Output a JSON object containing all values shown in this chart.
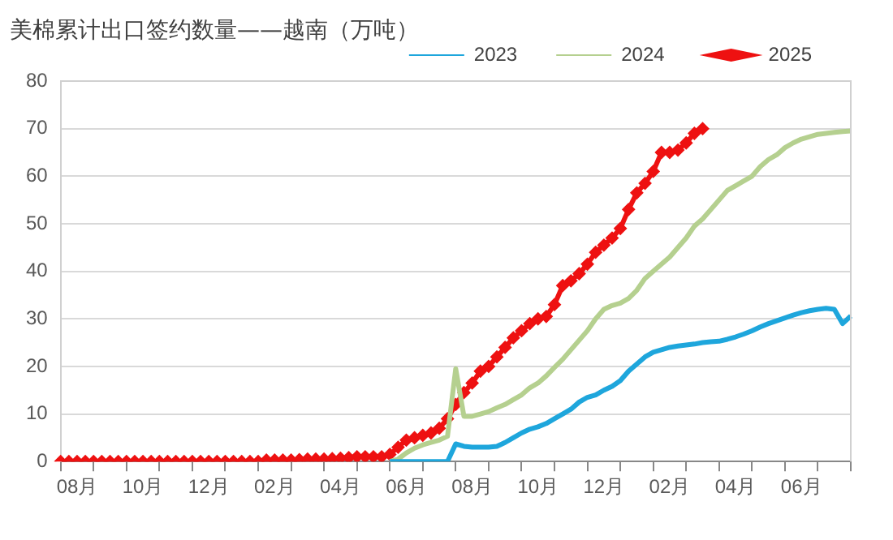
{
  "chart_data": {
    "type": "line",
    "title": "美棉累计出口签约数量——越南（万吨）",
    "categories": [
      null,
      null,
      "08月",
      null,
      null,
      null,
      null,
      null,
      null,
      null,
      "10月",
      null,
      null,
      null,
      null,
      null,
      null,
      null,
      "12月",
      null,
      null,
      null,
      null,
      null,
      null,
      null,
      "02月",
      null,
      null,
      null,
      null,
      null,
      null,
      null,
      "04月",
      null,
      null,
      null,
      null,
      null,
      null,
      null,
      "06月",
      null,
      null,
      null,
      null,
      null,
      null,
      null,
      "08月",
      null,
      null,
      null,
      null,
      null,
      null,
      null,
      "10月",
      null,
      null,
      null,
      null,
      null,
      null,
      null,
      "12月",
      null,
      null,
      null,
      null,
      null,
      null,
      null,
      "02月",
      null,
      null,
      null,
      null,
      null,
      null,
      null,
      "04月",
      null,
      null,
      null,
      null,
      null,
      null,
      null,
      "06月",
      null,
      null,
      null,
      null,
      null,
      null
    ],
    "ylim": [
      0,
      80
    ],
    "yticks": [
      0,
      10,
      20,
      30,
      40,
      50,
      60,
      70,
      80
    ],
    "grid": "y",
    "legend": "top right",
    "line_style": "solid",
    "series": [
      {
        "name": "2023",
        "color": "#1ea6dc",
        "values": [
          null,
          null,
          null,
          null,
          null,
          null,
          null,
          null,
          null,
          null,
          null,
          null,
          null,
          null,
          null,
          null,
          null,
          null,
          null,
          null,
          null,
          null,
          null,
          null,
          null,
          null,
          null,
          null,
          null,
          null,
          null,
          null,
          null,
          null,
          null,
          null,
          null,
          null,
          null,
          null,
          0,
          0,
          0,
          0,
          0,
          0,
          0,
          0,
          3.7,
          3.2,
          3,
          3,
          3,
          3.2,
          4,
          5,
          6,
          6.8,
          7.3,
          8,
          9,
          10,
          11,
          12.5,
          13.5,
          14,
          15,
          15.8,
          17,
          19,
          20.5,
          22,
          23,
          23.5,
          24,
          24.3,
          24.5,
          24.7,
          25,
          25.2,
          25.3,
          25.7,
          26.2,
          26.8,
          27.5,
          28.3,
          29,
          29.6,
          30.2,
          30.8,
          31.3,
          31.7,
          32,
          32.2,
          32,
          29,
          30.6
        ]
      },
      {
        "name": "2024",
        "color": "#b5d08f",
        "values": [
          null,
          null,
          null,
          null,
          null,
          null,
          null,
          null,
          null,
          null,
          null,
          null,
          null,
          null,
          null,
          null,
          null,
          null,
          null,
          null,
          null,
          null,
          null,
          null,
          null,
          null,
          null,
          null,
          null,
          null,
          null,
          null,
          null,
          null,
          null,
          null,
          null,
          null,
          null,
          null,
          0,
          0.5,
          1.8,
          2.8,
          3.5,
          4,
          4.5,
          5.3,
          19.5,
          9.5,
          9.5,
          10,
          10.5,
          11.3,
          12,
          13,
          14,
          15.5,
          16.5,
          18,
          19.8,
          21.5,
          23.5,
          25.5,
          27.5,
          30,
          32,
          32.8,
          33.3,
          34.3,
          36,
          38.5,
          40,
          41.5,
          43,
          45,
          47,
          49.5,
          51,
          53,
          55,
          57,
          58,
          59,
          60,
          62,
          63.5,
          64.5,
          66,
          67,
          67.8,
          68.3,
          68.8,
          69,
          69.2,
          69.4,
          69.5
        ]
      },
      {
        "name": "2025",
        "color": "#ee1111",
        "marker": "diamond",
        "values": [
          0,
          0,
          0,
          0,
          0,
          0,
          0,
          0,
          0,
          0,
          0,
          0,
          0,
          0,
          0,
          0,
          0,
          0,
          0,
          0,
          0,
          0,
          0,
          0,
          0,
          0.3,
          0.3,
          0.3,
          0.3,
          0.4,
          0.5,
          0.5,
          0.5,
          0.6,
          0.7,
          0.8,
          1,
          1,
          1,
          1,
          1.5,
          3,
          4.5,
          5,
          5.5,
          6,
          7,
          9,
          12,
          14.5,
          16.5,
          19,
          20,
          22,
          24,
          26,
          27.5,
          29,
          30,
          30.5,
          33,
          37,
          38,
          39.5,
          41.5,
          44,
          45.5,
          47,
          49,
          53,
          56.5,
          58.5,
          61,
          65,
          65,
          65.5,
          67,
          69,
          70,
          null,
          null,
          null,
          null,
          null,
          null,
          null,
          null,
          null,
          null,
          null,
          null,
          null,
          null,
          null,
          null,
          null,
          null
        ]
      }
    ]
  }
}
